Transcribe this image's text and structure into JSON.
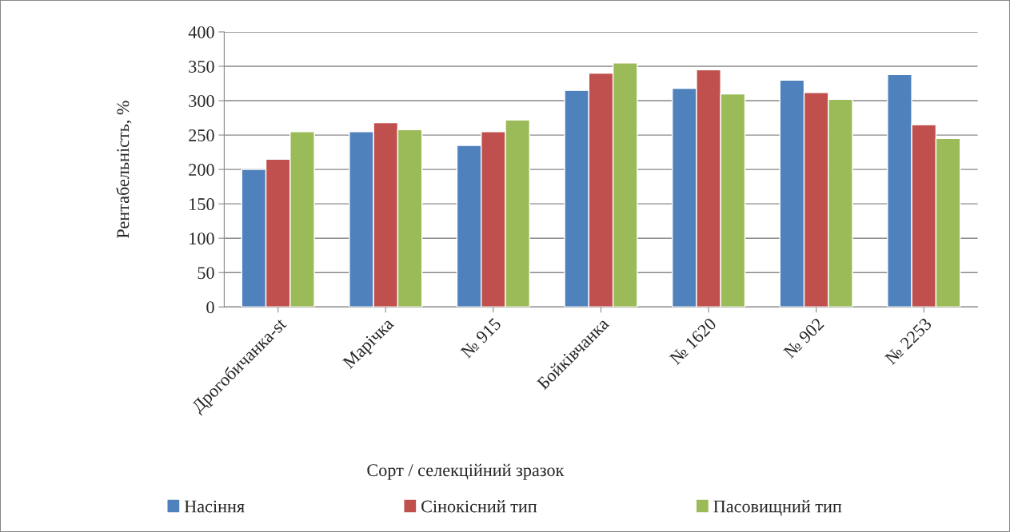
{
  "chart_data": {
    "type": "bar",
    "xlabel": "Сорт / селекційний зразок",
    "ylabel": "Рентабельність, %",
    "categories": [
      "Дрогобичанка-st",
      "Марічка",
      "№ 915",
      "Бойківчанка",
      "№ 1620",
      "№ 902",
      "№ 2253"
    ],
    "series": [
      {
        "name": "Насіння",
        "color": "#4f81bd",
        "values": [
          200,
          255,
          235,
          315,
          318,
          330,
          338
        ]
      },
      {
        "name": "Сінокісний тип",
        "color": "#c0504d",
        "values": [
          215,
          268,
          255,
          340,
          345,
          312,
          265
        ]
      },
      {
        "name": "Пасовищний тип",
        "color": "#9bbb59",
        "values": [
          255,
          258,
          272,
          355,
          310,
          302,
          245
        ]
      }
    ],
    "ylim": [
      0,
      400
    ],
    "yticks": [
      0,
      50,
      100,
      150,
      200,
      250,
      300,
      350,
      400
    ],
    "grid": "y",
    "legend": "bottom"
  }
}
